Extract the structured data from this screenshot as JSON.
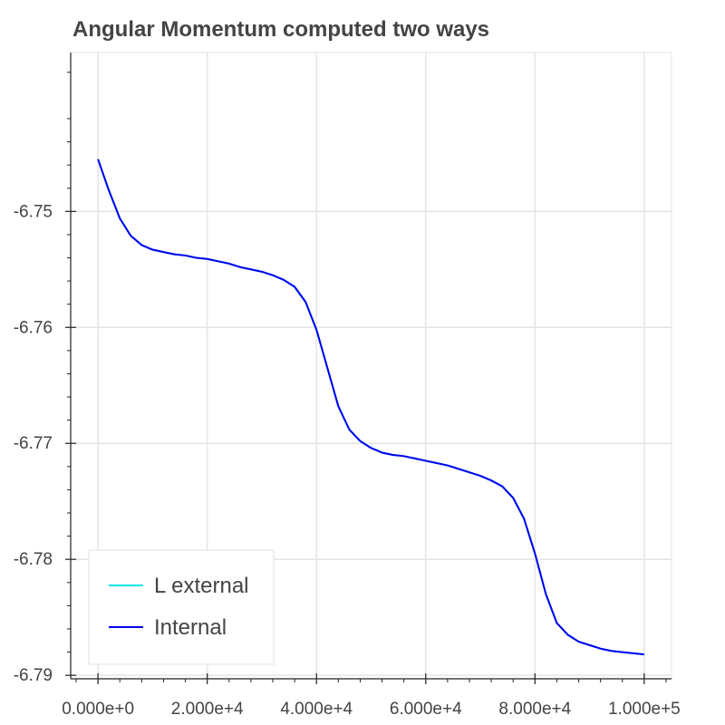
{
  "chart_data": {
    "type": "line",
    "title": "Angular Momentum computed two ways",
    "xlabel": "",
    "ylabel": "",
    "xlim": [
      -5000,
      105000
    ],
    "ylim": [
      -6.7903,
      -6.7363
    ],
    "x_ticks": [
      0,
      20000,
      40000,
      60000,
      80000,
      100000
    ],
    "x_tick_labels": [
      "0.000e+0",
      "2.000e+4",
      "4.000e+4",
      "6.000e+4",
      "8.000e+4",
      "1.000e+5"
    ],
    "y_ticks": [
      -6.75,
      -6.76,
      -6.77,
      -6.78,
      -6.79
    ],
    "y_tick_labels": [
      "-6.75",
      "-6.76",
      "-6.77",
      "-6.78",
      "-6.79"
    ],
    "grid": true,
    "legend_position": "bottom-left",
    "series": [
      {
        "name": "L external",
        "color": "#00e5ee",
        "x": [
          0,
          2000,
          4000,
          6000,
          8000,
          10000,
          12000,
          14000,
          16000,
          18000,
          20000,
          22000,
          24000,
          26000,
          28000,
          30000,
          32000,
          34000,
          36000,
          38000,
          40000,
          42000,
          44000,
          46000,
          48000,
          50000,
          52000,
          54000,
          56000,
          58000,
          60000,
          62000,
          64000,
          66000,
          68000,
          70000,
          72000,
          74000,
          76000,
          78000,
          80000,
          82000,
          84000,
          86000,
          88000,
          90000,
          92000,
          94000,
          96000,
          98000,
          100000
        ],
        "y": [
          -6.7455,
          -6.7482,
          -6.7506,
          -6.7521,
          -6.7529,
          -6.7533,
          -6.7535,
          -6.7537,
          -6.7538,
          -6.754,
          -6.7541,
          -6.7543,
          -6.7545,
          -6.7548,
          -6.755,
          -6.7552,
          -6.7555,
          -6.7559,
          -6.7565,
          -6.7578,
          -6.7602,
          -6.7635,
          -6.7668,
          -6.7688,
          -6.7698,
          -6.7704,
          -6.7708,
          -6.771,
          -6.7711,
          -6.7713,
          -6.7715,
          -6.7717,
          -6.7719,
          -6.7722,
          -6.7725,
          -6.7728,
          -6.7732,
          -6.7737,
          -6.7747,
          -6.7765,
          -6.7795,
          -6.783,
          -6.7855,
          -6.7865,
          -6.7871,
          -6.7874,
          -6.7877,
          -6.7879,
          -6.788,
          -6.7881,
          -6.7882
        ]
      },
      {
        "name": "Internal",
        "color": "#0000ee",
        "x": [
          0,
          2000,
          4000,
          6000,
          8000,
          10000,
          12000,
          14000,
          16000,
          18000,
          20000,
          22000,
          24000,
          26000,
          28000,
          30000,
          32000,
          34000,
          36000,
          38000,
          40000,
          42000,
          44000,
          46000,
          48000,
          50000,
          52000,
          54000,
          56000,
          58000,
          60000,
          62000,
          64000,
          66000,
          68000,
          70000,
          72000,
          74000,
          76000,
          78000,
          80000,
          82000,
          84000,
          86000,
          88000,
          90000,
          92000,
          94000,
          96000,
          98000,
          100000
        ],
        "y": [
          -6.7455,
          -6.7482,
          -6.7506,
          -6.7521,
          -6.7529,
          -6.7533,
          -6.7535,
          -6.7537,
          -6.7538,
          -6.754,
          -6.7541,
          -6.7543,
          -6.7545,
          -6.7548,
          -6.755,
          -6.7552,
          -6.7555,
          -6.7559,
          -6.7565,
          -6.7578,
          -6.7602,
          -6.7635,
          -6.7668,
          -6.7688,
          -6.7698,
          -6.7704,
          -6.7708,
          -6.771,
          -6.7711,
          -6.7713,
          -6.7715,
          -6.7717,
          -6.7719,
          -6.7722,
          -6.7725,
          -6.7728,
          -6.7732,
          -6.7737,
          -6.7747,
          -6.7765,
          -6.7795,
          -6.783,
          -6.7855,
          -6.7865,
          -6.7871,
          -6.7874,
          -6.7877,
          -6.7879,
          -6.788,
          -6.7881,
          -6.7882
        ]
      }
    ]
  }
}
